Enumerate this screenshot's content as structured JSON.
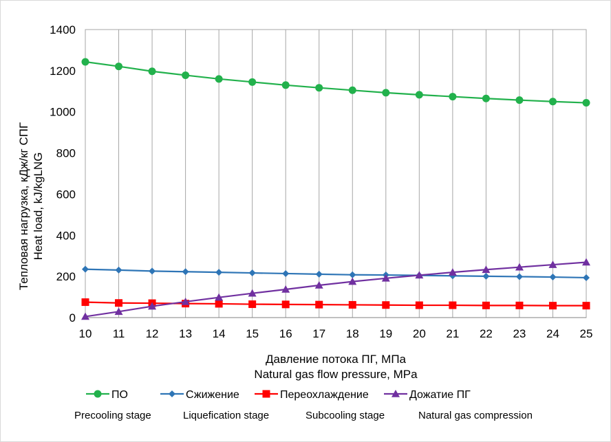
{
  "chart_data": {
    "type": "line",
    "title": "",
    "xlabel": [
      "Давление потока ПГ, МПа",
      "Natural gas flow pressure, MPa"
    ],
    "ylabel": [
      "Тепловая нагрузка, кДж/кг СПГ",
      "Heat load, kJ/kgLNG"
    ],
    "xlim": [
      10,
      25
    ],
    "ylim": [
      0,
      1400
    ],
    "x_ticks": [
      "10",
      "11",
      "12",
      "13",
      "14",
      "15",
      "16",
      "17",
      "18",
      "19",
      "20",
      "21",
      "22",
      "23",
      "24",
      "25"
    ],
    "y_ticks": [
      "0",
      "200",
      "400",
      "600",
      "800",
      "1000",
      "1200",
      "1400"
    ],
    "x": [
      10,
      11,
      12,
      13,
      14,
      15,
      16,
      17,
      18,
      19,
      20,
      21,
      22,
      23,
      24,
      25
    ],
    "grid": "vertical",
    "legend_position": "bottom",
    "series": [
      {
        "name": "ПО",
        "subtitle": "Precooling stage",
        "color": "#22b14c",
        "marker": "circle",
        "values": [
          1243,
          1221,
          1197,
          1178,
          1160,
          1145,
          1130,
          1117,
          1105,
          1093,
          1083,
          1074,
          1065,
          1057,
          1050,
          1044
        ]
      },
      {
        "name": "Сжижение",
        "subtitle": "Liquefication stage",
        "color": "#2e75b6",
        "marker": "diamond",
        "values": [
          235,
          231,
          226,
          223,
          220,
          217,
          214,
          211,
          208,
          207,
          205,
          203,
          201,
          199,
          197,
          194
        ]
      },
      {
        "name": "Переохлаждение",
        "subtitle": "Subcooling stage",
        "color": "#ff0000",
        "marker": "square",
        "values": [
          75,
          71,
          70,
          68,
          67,
          65,
          64,
          63,
          62,
          61,
          60,
          60,
          59,
          59,
          58,
          58
        ]
      },
      {
        "name": "Дожатие ПГ",
        "subtitle": "Natural gas compression",
        "color": "#7030a0",
        "marker": "triangle",
        "values": [
          5,
          29,
          55,
          77,
          98,
          118,
          137,
          157,
          175,
          191,
          206,
          220,
          233,
          245,
          257,
          269
        ]
      }
    ]
  }
}
